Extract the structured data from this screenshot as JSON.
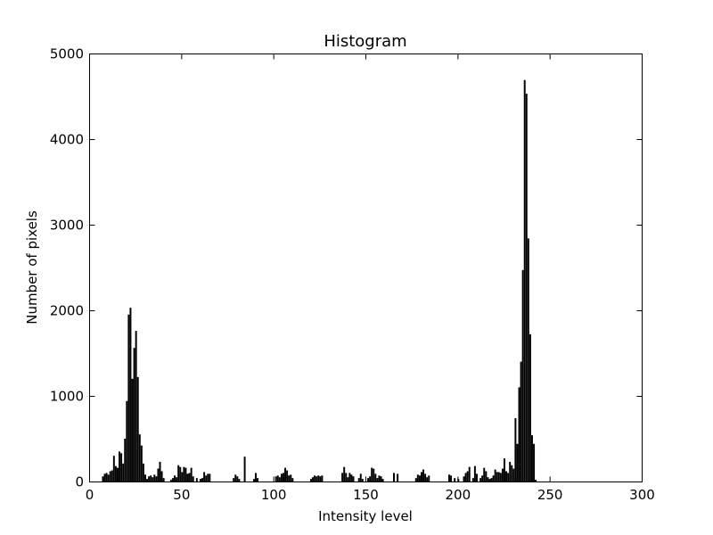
{
  "chart_data": {
    "type": "bar",
    "title": "Histogram",
    "xlabel": "Intensity level",
    "ylabel": "Number of pixels",
    "xlim": [
      0,
      300
    ],
    "ylim": [
      0,
      5000
    ],
    "grid": false,
    "x_ticks": [
      "0",
      "50",
      "100",
      "150",
      "200",
      "250",
      "300"
    ],
    "y_ticks": [
      "0",
      "1000",
      "2000",
      "3000",
      "4000",
      "5000"
    ],
    "bar_color": "#000000",
    "bars": [
      [
        7,
        60
      ],
      [
        8,
        90
      ],
      [
        9,
        100
      ],
      [
        10,
        80
      ],
      [
        11,
        120
      ],
      [
        12,
        130
      ],
      [
        13,
        300
      ],
      [
        14,
        180
      ],
      [
        15,
        160
      ],
      [
        16,
        350
      ],
      [
        17,
        330
      ],
      [
        18,
        210
      ],
      [
        19,
        500
      ],
      [
        20,
        940
      ],
      [
        21,
        1950
      ],
      [
        22,
        2030
      ],
      [
        23,
        1200
      ],
      [
        24,
        1560
      ],
      [
        25,
        1760
      ],
      [
        26,
        1220
      ],
      [
        27,
        550
      ],
      [
        28,
        420
      ],
      [
        29,
        210
      ],
      [
        30,
        80
      ],
      [
        31,
        30
      ],
      [
        32,
        60
      ],
      [
        33,
        70
      ],
      [
        34,
        50
      ],
      [
        35,
        80
      ],
      [
        36,
        60
      ],
      [
        37,
        150
      ],
      [
        38,
        230
      ],
      [
        39,
        120
      ],
      [
        40,
        40
      ],
      [
        44,
        20
      ],
      [
        45,
        40
      ],
      [
        46,
        70
      ],
      [
        47,
        50
      ],
      [
        48,
        190
      ],
      [
        49,
        170
      ],
      [
        50,
        110
      ],
      [
        51,
        170
      ],
      [
        52,
        160
      ],
      [
        53,
        90
      ],
      [
        54,
        100
      ],
      [
        55,
        160
      ],
      [
        56,
        60
      ],
      [
        58,
        40
      ],
      [
        60,
        30
      ],
      [
        61,
        40
      ],
      [
        62,
        110
      ],
      [
        63,
        70
      ],
      [
        64,
        90
      ],
      [
        65,
        90
      ],
      [
        78,
        40
      ],
      [
        79,
        80
      ],
      [
        80,
        60
      ],
      [
        81,
        30
      ],
      [
        84,
        290
      ],
      [
        89,
        30
      ],
      [
        90,
        100
      ],
      [
        91,
        40
      ],
      [
        101,
        60
      ],
      [
        102,
        70
      ],
      [
        103,
        50
      ],
      [
        104,
        90
      ],
      [
        105,
        100
      ],
      [
        106,
        160
      ],
      [
        107,
        130
      ],
      [
        108,
        70
      ],
      [
        109,
        80
      ],
      [
        110,
        40
      ],
      [
        120,
        30
      ],
      [
        121,
        50
      ],
      [
        122,
        70
      ],
      [
        123,
        60
      ],
      [
        124,
        70
      ],
      [
        125,
        60
      ],
      [
        126,
        70
      ],
      [
        137,
        100
      ],
      [
        138,
        170
      ],
      [
        139,
        100
      ],
      [
        140,
        50
      ],
      [
        141,
        100
      ],
      [
        142,
        80
      ],
      [
        143,
        60
      ],
      [
        146,
        40
      ],
      [
        147,
        90
      ],
      [
        148,
        30
      ],
      [
        151,
        40
      ],
      [
        152,
        60
      ],
      [
        153,
        160
      ],
      [
        154,
        150
      ],
      [
        155,
        90
      ],
      [
        156,
        40
      ],
      [
        157,
        70
      ],
      [
        158,
        60
      ],
      [
        159,
        30
      ],
      [
        165,
        100
      ],
      [
        167,
        90
      ],
      [
        177,
        40
      ],
      [
        178,
        80
      ],
      [
        179,
        70
      ],
      [
        180,
        110
      ],
      [
        181,
        140
      ],
      [
        182,
        90
      ],
      [
        183,
        50
      ],
      [
        184,
        70
      ],
      [
        195,
        80
      ],
      [
        196,
        70
      ],
      [
        198,
        40
      ],
      [
        200,
        30
      ],
      [
        203,
        60
      ],
      [
        204,
        100
      ],
      [
        205,
        120
      ],
      [
        206,
        170
      ],
      [
        208,
        40
      ],
      [
        209,
        180
      ],
      [
        210,
        90
      ],
      [
        212,
        40
      ],
      [
        213,
        70
      ],
      [
        214,
        160
      ],
      [
        215,
        120
      ],
      [
        216,
        50
      ],
      [
        217,
        30
      ],
      [
        218,
        40
      ],
      [
        219,
        70
      ],
      [
        220,
        140
      ],
      [
        221,
        110
      ],
      [
        222,
        110
      ],
      [
        223,
        100
      ],
      [
        224,
        150
      ],
      [
        225,
        270
      ],
      [
        226,
        120
      ],
      [
        227,
        100
      ],
      [
        228,
        230
      ],
      [
        229,
        190
      ],
      [
        230,
        150
      ],
      [
        231,
        740
      ],
      [
        232,
        440
      ],
      [
        233,
        1100
      ],
      [
        234,
        1400
      ],
      [
        235,
        2470
      ],
      [
        236,
        4690
      ],
      [
        237,
        4530
      ],
      [
        238,
        2840
      ],
      [
        239,
        1720
      ],
      [
        240,
        540
      ],
      [
        241,
        440
      ],
      [
        242,
        20
      ]
    ]
  }
}
